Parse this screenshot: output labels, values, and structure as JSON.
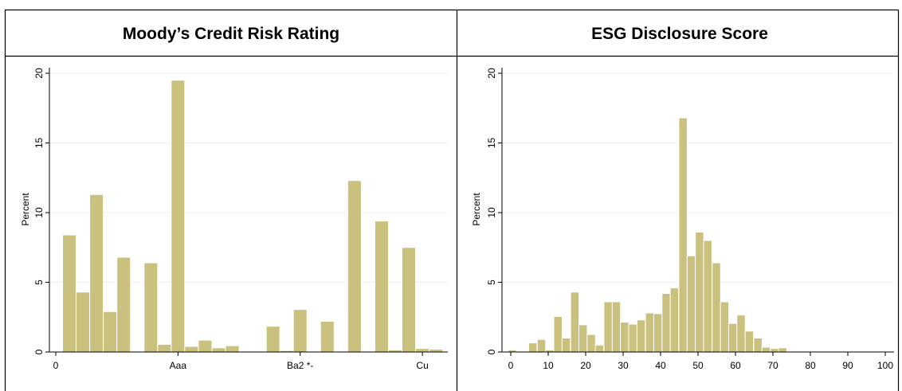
{
  "chart_data": [
    {
      "type": "bar",
      "title": "Moody’s Credit Risk Rating",
      "xlabel": "",
      "ylabel": "Percent",
      "ylim": [
        0,
        20
      ],
      "yticks": [
        0,
        5,
        10,
        15,
        20
      ],
      "grid": true,
      "bar_color": "#cbc17f",
      "x_tick_labels": [
        {
          "pos": 0,
          "label": "0"
        },
        {
          "pos": 9,
          "label": "Aaa"
        },
        {
          "pos": 18,
          "label": "Ba2 *-"
        },
        {
          "pos": 27,
          "label": "Cu"
        }
      ],
      "bins": [
        {
          "x": 1,
          "value": 8.4
        },
        {
          "x": 2,
          "value": 4.3
        },
        {
          "x": 3,
          "value": 11.3
        },
        {
          "x": 4,
          "value": 2.9
        },
        {
          "x": 5,
          "value": 6.8
        },
        {
          "x": 6,
          "value": 0.05
        },
        {
          "x": 7,
          "value": 6.4
        },
        {
          "x": 8,
          "value": 0.55
        },
        {
          "x": 9,
          "value": 19.5
        },
        {
          "x": 10,
          "value": 0.4
        },
        {
          "x": 11,
          "value": 0.85
        },
        {
          "x": 12,
          "value": 0.3
        },
        {
          "x": 13,
          "value": 0.45
        },
        {
          "x": 14,
          "value": 0.05
        },
        {
          "x": 15,
          "value": 0.05
        },
        {
          "x": 16,
          "value": 1.85
        },
        {
          "x": 17,
          "value": 0.1
        },
        {
          "x": 18,
          "value": 3.05
        },
        {
          "x": 19,
          "value": 0.05
        },
        {
          "x": 20,
          "value": 2.2
        },
        {
          "x": 21,
          "value": 0.05
        },
        {
          "x": 22,
          "value": 12.3
        },
        {
          "x": 23,
          "value": 0.05
        },
        {
          "x": 24,
          "value": 9.4
        },
        {
          "x": 25,
          "value": 0.15
        },
        {
          "x": 26,
          "value": 7.5
        },
        {
          "x": 27,
          "value": 0.25
        },
        {
          "x": 28,
          "value": 0.2
        }
      ]
    },
    {
      "type": "bar",
      "title": "ESG Disclosure Score",
      "xlabel": "",
      "ylabel": "Percent",
      "xlim": [
        -2,
        103
      ],
      "ylim": [
        0,
        20
      ],
      "xticks": [
        0,
        10,
        20,
        30,
        40,
        50,
        60,
        70,
        80,
        90,
        100
      ],
      "yticks": [
        0,
        5,
        10,
        15,
        20
      ],
      "grid": true,
      "bar_color": "#cbc17f",
      "bin_width": 2.23,
      "bins": [
        {
          "x": 0.4,
          "value": 0.15
        },
        {
          "x": 5.9,
          "value": 0.65
        },
        {
          "x": 8.2,
          "value": 0.9
        },
        {
          "x": 10.4,
          "value": 0.15
        },
        {
          "x": 12.6,
          "value": 2.55
        },
        {
          "x": 14.8,
          "value": 1.0
        },
        {
          "x": 17.1,
          "value": 4.3
        },
        {
          "x": 19.3,
          "value": 1.95
        },
        {
          "x": 21.5,
          "value": 1.25
        },
        {
          "x": 23.7,
          "value": 0.5
        },
        {
          "x": 26.0,
          "value": 3.6
        },
        {
          "x": 28.2,
          "value": 3.6
        },
        {
          "x": 30.4,
          "value": 2.15
        },
        {
          "x": 32.6,
          "value": 2.0
        },
        {
          "x": 34.8,
          "value": 2.3
        },
        {
          "x": 37.1,
          "value": 2.8
        },
        {
          "x": 39.3,
          "value": 2.75
        },
        {
          "x": 41.5,
          "value": 4.2
        },
        {
          "x": 43.7,
          "value": 4.6
        },
        {
          "x": 46.0,
          "value": 16.8
        },
        {
          "x": 48.2,
          "value": 6.9
        },
        {
          "x": 50.4,
          "value": 8.6
        },
        {
          "x": 52.6,
          "value": 8.0
        },
        {
          "x": 54.9,
          "value": 6.4
        },
        {
          "x": 57.1,
          "value": 3.6
        },
        {
          "x": 59.3,
          "value": 2.05
        },
        {
          "x": 61.5,
          "value": 2.65
        },
        {
          "x": 63.7,
          "value": 1.5
        },
        {
          "x": 66.0,
          "value": 1.0
        },
        {
          "x": 68.2,
          "value": 0.35
        },
        {
          "x": 70.4,
          "value": 0.25
        },
        {
          "x": 72.6,
          "value": 0.3
        }
      ]
    }
  ]
}
